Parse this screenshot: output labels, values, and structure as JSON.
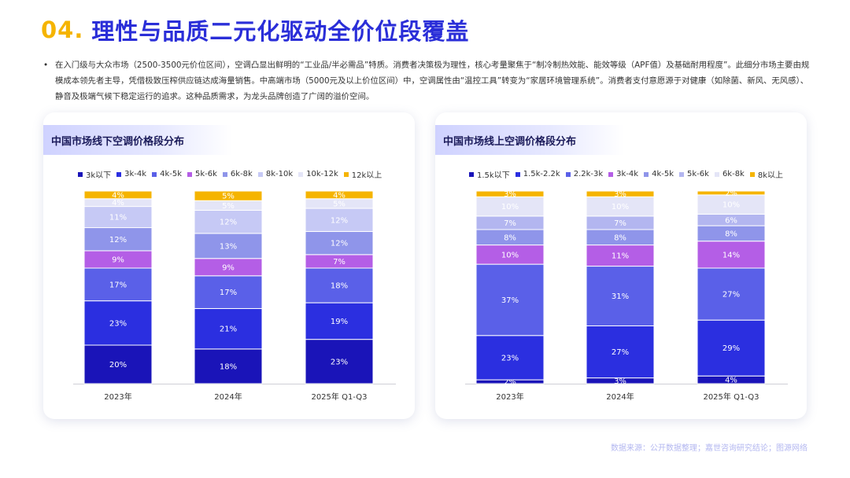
{
  "header": {
    "number": "04.",
    "title": "理性与品质二元化驱动全价位段覆盖"
  },
  "paragraph": {
    "bullet": "•",
    "text": "在入门级与大众市场（2500-3500元价位区间），空调凸显出鲜明的“工业品/半必需品”特质。消费者决策极为理性，核心考量聚焦于“制冷制热效能、能效等级（APF值）及基础耐用程度”。此细分市场主要由规模成本领先者主导，凭借极致压榨供应链达成海量销售。中高端市场（5000元及以上价位区间）中，空调属性由“温控工具”转变为“家居环境管理系统”。消费者支付意愿源于对健康（如除菌、新风、无风感）、静音及极端气候下稳定运行的追求。这种品质需求，为龙头品牌创造了广阔的溢价空间。"
  },
  "source": "数据来源：公开数据整理；嘉世咨询研究结论；图源网络",
  "chart_data": [
    {
      "type": "bar",
      "stacked": true,
      "title": "中国市场线下空调价格段分布",
      "categories": [
        "2023年",
        "2024年",
        "2025年 Q1-Q3"
      ],
      "series": [
        {
          "name": "3k以下",
          "color": "#1a14b8",
          "values": [
            20,
            18,
            23
          ]
        },
        {
          "name": "3k-4k",
          "color": "#2b2fe0",
          "values": [
            23,
            21,
            19
          ]
        },
        {
          "name": "4k-5k",
          "color": "#5a60e8",
          "values": [
            17,
            17,
            18
          ]
        },
        {
          "name": "5k-6k",
          "color": "#b45ee6",
          "values": [
            9,
            9,
            7
          ]
        },
        {
          "name": "6k-8k",
          "color": "#8f95ea",
          "values": [
            12,
            13,
            12
          ]
        },
        {
          "name": "8k-10k",
          "color": "#c6c9f5",
          "values": [
            11,
            12,
            12
          ]
        },
        {
          "name": "10k-12k",
          "color": "#e4e5f7",
          "values": [
            4,
            5,
            5
          ]
        },
        {
          "name": "12k以上",
          "color": "#f5b400",
          "values": [
            4,
            5,
            4
          ]
        }
      ]
    },
    {
      "type": "bar",
      "stacked": true,
      "title": "中国市场线上空调价格段分布",
      "categories": [
        "2023年",
        "2024年",
        "2025年 Q1-Q3"
      ],
      "series": [
        {
          "name": "1.5k以下",
          "color": "#1a14b8",
          "values": [
            2,
            3,
            4
          ]
        },
        {
          "name": "1.5k-2.2k",
          "color": "#2b2fe0",
          "values": [
            23,
            27,
            29
          ]
        },
        {
          "name": "2.2k-3k",
          "color": "#5a60e8",
          "values": [
            37,
            31,
            27
          ]
        },
        {
          "name": "3k-4k",
          "color": "#b45ee6",
          "values": [
            10,
            11,
            14
          ]
        },
        {
          "name": "4k-5k",
          "color": "#8f95ea",
          "values": [
            8,
            8,
            8
          ]
        },
        {
          "name": "5k-6k",
          "color": "#b3b6f0",
          "values": [
            7,
            7,
            6
          ]
        },
        {
          "name": "6k-8k",
          "color": "#e4e5f7",
          "values": [
            10,
            10,
            10
          ]
        },
        {
          "name": "8k以上",
          "color": "#f5b400",
          "values": [
            3,
            3,
            2
          ]
        }
      ]
    }
  ]
}
